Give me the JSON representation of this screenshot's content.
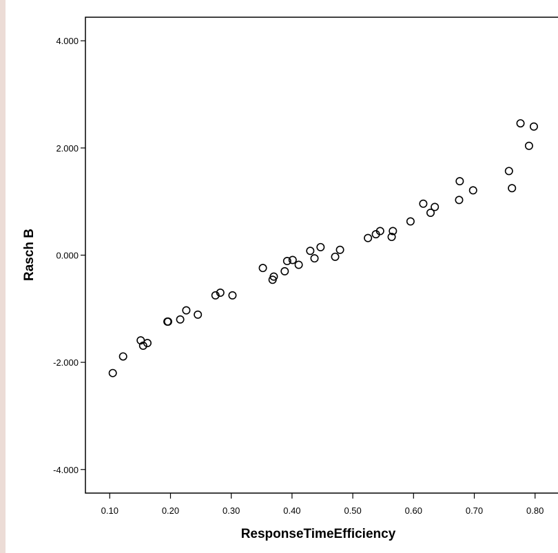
{
  "chart_data": {
    "type": "scatter",
    "title": "",
    "xlabel": "ResponseTimeEfficiency",
    "ylabel": "Rasch B",
    "xlim": [
      0.06,
      0.84
    ],
    "ylim": [
      -4.44,
      4.44
    ],
    "x_ticks": [
      0.1,
      0.2,
      0.3,
      0.4,
      0.5,
      0.6,
      0.7,
      0.8
    ],
    "x_tick_labels": [
      "0.10",
      "0.20",
      "0.30",
      "0.40",
      "0.50",
      "0.60",
      "0.70",
      "0.80"
    ],
    "y_ticks": [
      4,
      2,
      0,
      -2,
      -4
    ],
    "y_tick_labels": [
      "4.000",
      "2.000",
      "0.000",
      "-2.000",
      "-4.000"
    ],
    "grid": false,
    "legend": "none",
    "marker": "open-circle",
    "points": [
      [
        0.105,
        -2.2
      ],
      [
        0.122,
        -1.89
      ],
      [
        0.151,
        -1.59
      ],
      [
        0.155,
        -1.69
      ],
      [
        0.162,
        -1.64
      ],
      [
        0.195,
        -1.24
      ],
      [
        0.196,
        -1.24
      ],
      [
        0.216,
        -1.2
      ],
      [
        0.226,
        -1.03
      ],
      [
        0.245,
        -1.11
      ],
      [
        0.274,
        -0.75
      ],
      [
        0.282,
        -0.7
      ],
      [
        0.302,
        -0.75
      ],
      [
        0.352,
        -0.24
      ],
      [
        0.368,
        -0.46
      ],
      [
        0.37,
        -0.4
      ],
      [
        0.388,
        -0.3
      ],
      [
        0.392,
        -0.11
      ],
      [
        0.401,
        -0.09
      ],
      [
        0.411,
        -0.18
      ],
      [
        0.43,
        0.08
      ],
      [
        0.437,
        -0.06
      ],
      [
        0.447,
        0.15
      ],
      [
        0.471,
        -0.03
      ],
      [
        0.479,
        0.1
      ],
      [
        0.525,
        0.32
      ],
      [
        0.538,
        0.39
      ],
      [
        0.545,
        0.45
      ],
      [
        0.564,
        0.34
      ],
      [
        0.566,
        0.45
      ],
      [
        0.595,
        0.63
      ],
      [
        0.616,
        0.96
      ],
      [
        0.628,
        0.79
      ],
      [
        0.635,
        0.9
      ],
      [
        0.675,
        1.03
      ],
      [
        0.676,
        1.38
      ],
      [
        0.698,
        1.21
      ],
      [
        0.757,
        1.57
      ],
      [
        0.762,
        1.25
      ],
      [
        0.776,
        2.46
      ],
      [
        0.79,
        2.04
      ],
      [
        0.798,
        2.4
      ]
    ],
    "colors": {
      "marker_stroke": "#000000",
      "background": "#ffffff",
      "outer_background": "#ecdcd6"
    }
  }
}
